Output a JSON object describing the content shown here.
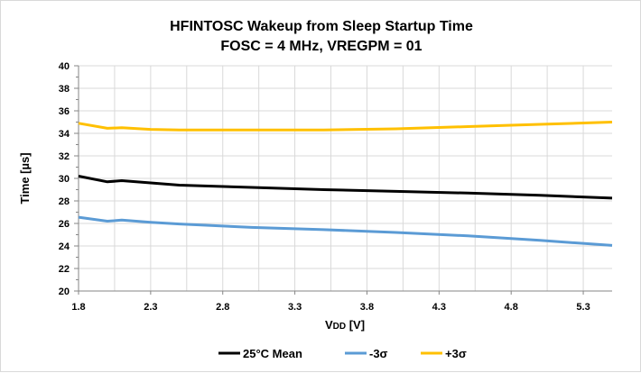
{
  "chart_data": {
    "type": "line",
    "title": "HFINTOSC Wakeup from Sleep Startup Time",
    "subtitle": "FOSC = 4 MHz, VREGPM = 01",
    "xlabel_main": "V",
    "xlabel_sub": "DD",
    "xlabel_unit": " [V]",
    "ylabel": "Time [µs]",
    "xlim": [
      1.8,
      5.5
    ],
    "ylim": [
      20,
      40
    ],
    "xticks": [
      "1.8",
      "2.3",
      "2.8",
      "3.3",
      "3.8",
      "4.3",
      "4.8",
      "5.3"
    ],
    "yticks": [
      "20",
      "22",
      "24",
      "26",
      "28",
      "30",
      "32",
      "34",
      "36",
      "38",
      "40"
    ],
    "grid": true,
    "legend_position": "bottom",
    "x": [
      1.8,
      2.0,
      2.1,
      2.3,
      2.5,
      3.0,
      3.5,
      4.0,
      4.5,
      5.0,
      5.5
    ],
    "series": [
      {
        "name": "25°C Mean",
        "color": "#000000",
        "values": [
          30.2,
          29.7,
          29.8,
          29.6,
          29.4,
          29.2,
          29.0,
          28.85,
          28.7,
          28.5,
          28.25
        ]
      },
      {
        "name": "-3σ",
        "color": "#5b9bd5",
        "values": [
          26.55,
          26.2,
          26.3,
          26.1,
          25.95,
          25.65,
          25.45,
          25.2,
          24.9,
          24.5,
          24.05
        ]
      },
      {
        "name": "+3σ",
        "color": "#ffc000",
        "values": [
          34.9,
          34.45,
          34.5,
          34.35,
          34.3,
          34.3,
          34.3,
          34.4,
          34.6,
          34.8,
          35.0
        ]
      }
    ]
  }
}
